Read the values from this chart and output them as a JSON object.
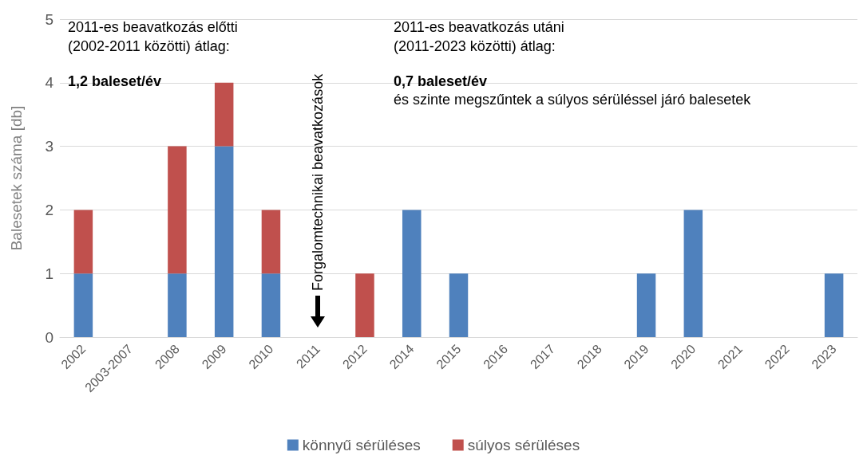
{
  "chart_data": {
    "type": "bar",
    "stacked": true,
    "ylabel": "Balesetek száma [db]",
    "categories": [
      "2002",
      "2003-2007",
      "2008",
      "2009",
      "2010",
      "2011",
      "2012",
      "2014",
      "2015",
      "2016",
      "2017",
      "2018",
      "2019",
      "2020",
      "2021",
      "2022",
      "2023"
    ],
    "series": [
      {
        "name": "könnyű sérüléses",
        "color": "#4f81bd",
        "values": [
          1,
          0,
          1,
          3,
          1,
          0,
          0,
          2,
          1,
          0,
          0,
          0,
          1,
          2,
          0,
          0,
          1
        ]
      },
      {
        "name": "súlyos sérüléses",
        "color": "#c0504d",
        "values": [
          1,
          0,
          2,
          1,
          1,
          0,
          1,
          0,
          0,
          0,
          0,
          0,
          0,
          0,
          0,
          0,
          0
        ]
      }
    ],
    "ylim": [
      0,
      5
    ],
    "yticks": [
      0,
      1,
      2,
      3,
      4,
      5
    ],
    "grid": "y",
    "legend": "bottom",
    "annotations": [
      "2011-es beavatkozás előtti\n(2002-2011 közötti) átlag:",
      "1,2 baleset/év",
      "2011-es beavatkozás utáni\n(2011-2023 közötti) átlag:",
      "0,7 baleset/év",
      "és szinte megszűntek a súlyos sérüléssel járó balesetek",
      "Forgalomtechnikai beavatkozások"
    ]
  }
}
